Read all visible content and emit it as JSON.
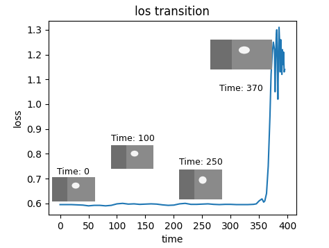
{
  "chart_data": {
    "type": "line",
    "title": "los transition",
    "x_label": "time",
    "y_label": "loss",
    "x": [
      0,
      10,
      20,
      30,
      40,
      50,
      60,
      70,
      80,
      90,
      100,
      110,
      120,
      130,
      140,
      150,
      160,
      170,
      180,
      190,
      200,
      210,
      220,
      230,
      240,
      250,
      260,
      270,
      280,
      290,
      300,
      310,
      320,
      330,
      340,
      345,
      350,
      355,
      358,
      360,
      363,
      366,
      369,
      371,
      373,
      375,
      377,
      378,
      379,
      380,
      381,
      382,
      383,
      384,
      385,
      386,
      387,
      388,
      389,
      390,
      391,
      392,
      393,
      394,
      395
    ],
    "values": [
      0.595,
      0.595,
      0.595,
      0.594,
      0.593,
      0.59,
      0.592,
      0.592,
      0.59,
      0.592,
      0.598,
      0.6,
      0.597,
      0.598,
      0.596,
      0.597,
      0.598,
      0.597,
      0.594,
      0.592,
      0.593,
      0.598,
      0.6,
      0.596,
      0.596,
      0.597,
      0.598,
      0.596,
      0.595,
      0.596,
      0.596,
      0.595,
      0.595,
      0.595,
      0.596,
      0.598,
      0.61,
      0.618,
      0.605,
      0.61,
      0.64,
      0.75,
      0.95,
      1.12,
      1.2,
      1.25,
      1.22,
      1.05,
      1.18,
      1.27,
      1.3,
      1.15,
      1.02,
      1.2,
      1.31,
      1.25,
      1.13,
      1.26,
      1.18,
      1.12,
      1.22,
      1.16,
      1.21,
      1.13,
      1.14
    ],
    "color": "#1f77b4",
    "xlim": [
      -20,
      415
    ],
    "xticks": [
      0,
      50,
      100,
      150,
      200,
      250,
      300,
      350,
      400
    ],
    "ylim": [
      0.555,
      1.335
    ],
    "yticks": [
      0.6,
      0.7,
      0.8,
      0.9,
      {
        "value": 1.0,
        "label": "1.0"
      },
      1.1,
      1.2,
      1.3
    ],
    "grid": false,
    "annotations": [
      "Time: 0",
      "Time: 100",
      "Time: 250",
      "Time: 370"
    ]
  }
}
